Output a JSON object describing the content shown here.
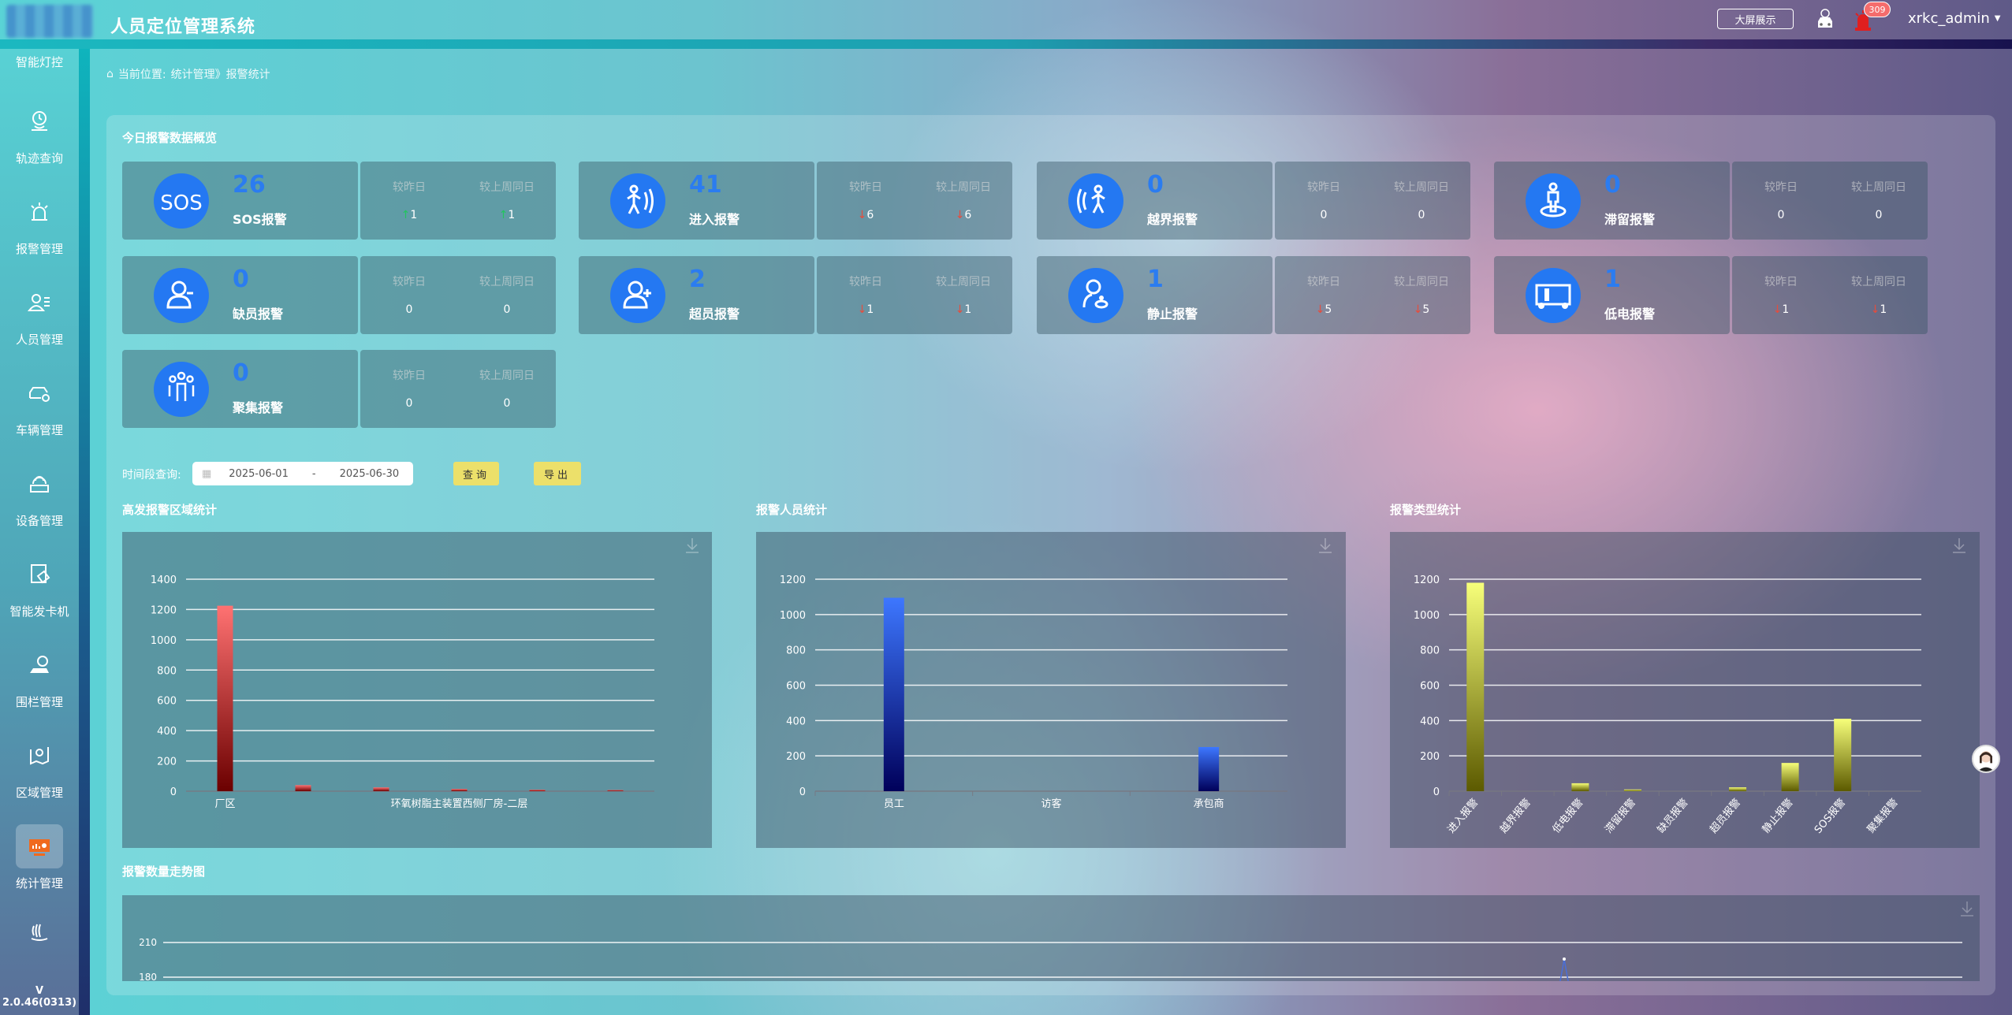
{
  "header": {
    "title": "人员定位管理系统",
    "big_screen": "大屏展示",
    "alarm_count": "309",
    "username": "xrkc_admin"
  },
  "sidebar": {
    "items": [
      {
        "label": "智能灯控",
        "icon": "light-icon"
      },
      {
        "label": "轨迹查询",
        "icon": "track-icon"
      },
      {
        "label": "报警管理",
        "icon": "alarm-icon"
      },
      {
        "label": "人员管理",
        "icon": "people-icon"
      },
      {
        "label": "车辆管理",
        "icon": "car-icon"
      },
      {
        "label": "设备管理",
        "icon": "device-icon"
      },
      {
        "label": "智能发卡机",
        "icon": "card-machine-icon"
      },
      {
        "label": "围栏管理",
        "icon": "fence-icon"
      },
      {
        "label": "区域管理",
        "icon": "area-icon"
      },
      {
        "label": "统计管理",
        "icon": "statistics-icon",
        "active": true
      }
    ],
    "version": "V 2.0.46(0313)"
  },
  "breadcrumb": {
    "prefix": "当前位置:",
    "path": "统计管理》报警统计"
  },
  "overview": {
    "title": "今日报警数据概览",
    "cmp_day": "较昨日",
    "cmp_week": "较上周同日",
    "cards": [
      {
        "label": "SOS报警",
        "value": "26",
        "icon": "sos-icon",
        "day": "1",
        "day_dir": "up",
        "week": "1",
        "week_dir": "up"
      },
      {
        "label": "进入报警",
        "value": "41",
        "icon": "enter-icon",
        "day": "6",
        "day_dir": "down",
        "week": "6",
        "week_dir": "down"
      },
      {
        "label": "越界报警",
        "value": "0",
        "icon": "cross-border-icon",
        "day": "0",
        "day_dir": "",
        "week": "0",
        "week_dir": ""
      },
      {
        "label": "滞留报警",
        "value": "0",
        "icon": "stay-icon",
        "day": "0",
        "day_dir": "",
        "week": "0",
        "week_dir": ""
      },
      {
        "label": "缺员报警",
        "value": "0",
        "icon": "user-minus-icon",
        "day": "0",
        "day_dir": "",
        "week": "0",
        "week_dir": ""
      },
      {
        "label": "超员报警",
        "value": "2",
        "icon": "user-plus-icon",
        "day": "1",
        "day_dir": "down",
        "week": "1",
        "week_dir": "down"
      },
      {
        "label": "静止报警",
        "value": "1",
        "icon": "still-icon",
        "day": "5",
        "day_dir": "down",
        "week": "5",
        "week_dir": "down"
      },
      {
        "label": "低电报警",
        "value": "1",
        "icon": "low-battery-icon",
        "day": "1",
        "day_dir": "down",
        "week": "1",
        "week_dir": "down"
      },
      {
        "label": "聚集报警",
        "value": "0",
        "icon": "gather-icon",
        "day": "0",
        "day_dir": "",
        "week": "0",
        "week_dir": ""
      }
    ]
  },
  "query": {
    "label": "时间段查询:",
    "start": "2025-06-01",
    "sep": "-",
    "end": "2025-06-30",
    "search": "查询",
    "export": "导出"
  },
  "colors": {
    "accent": "#2478f2",
    "button": "#ece06a",
    "up": "#22c55e",
    "down": "#e74c3c"
  },
  "chart_data": [
    {
      "type": "bar",
      "title": "高发报警区域统计",
      "categories": [
        "厂区",
        "",
        "",
        "环氧树脂主装置西侧厂房-二层",
        "",
        ""
      ],
      "values": [
        1225,
        40,
        25,
        15,
        10,
        8
      ],
      "ylim": [
        0,
        1400
      ],
      "yticks": [
        0,
        200,
        400,
        600,
        800,
        1000,
        1200,
        1400
      ],
      "grid": true,
      "color": [
        "#ff7272",
        "#6b0000"
      ]
    },
    {
      "type": "bar",
      "title": "报警人员统计",
      "categories": [
        "员工",
        "访客",
        "承包商"
      ],
      "values": [
        1095,
        0,
        250
      ],
      "ylim": [
        0,
        1200
      ],
      "yticks": [
        0,
        200,
        400,
        600,
        800,
        1000,
        1200
      ],
      "grid": true,
      "color": [
        "#3d77ff",
        "#00005a"
      ]
    },
    {
      "type": "bar",
      "title": "报警类型统计",
      "categories": [
        "进入报警",
        "越界报警",
        "低电报警",
        "滞留报警",
        "缺员报警",
        "超员报警",
        "静止报警",
        "SOS报警",
        "聚集报警"
      ],
      "values": [
        1180,
        0,
        45,
        10,
        0,
        22,
        160,
        410,
        0
      ],
      "ylim": [
        0,
        1200
      ],
      "yticks": [
        0,
        200,
        400,
        600,
        800,
        1000,
        1200
      ],
      "grid": true,
      "rotated_labels": true,
      "color": [
        "#f7ff7a",
        "#5c5a00"
      ]
    },
    {
      "type": "line",
      "title": "报警数量走势图",
      "yticks": [
        180,
        210
      ],
      "grid": true,
      "color": "#4a6fd8"
    }
  ]
}
